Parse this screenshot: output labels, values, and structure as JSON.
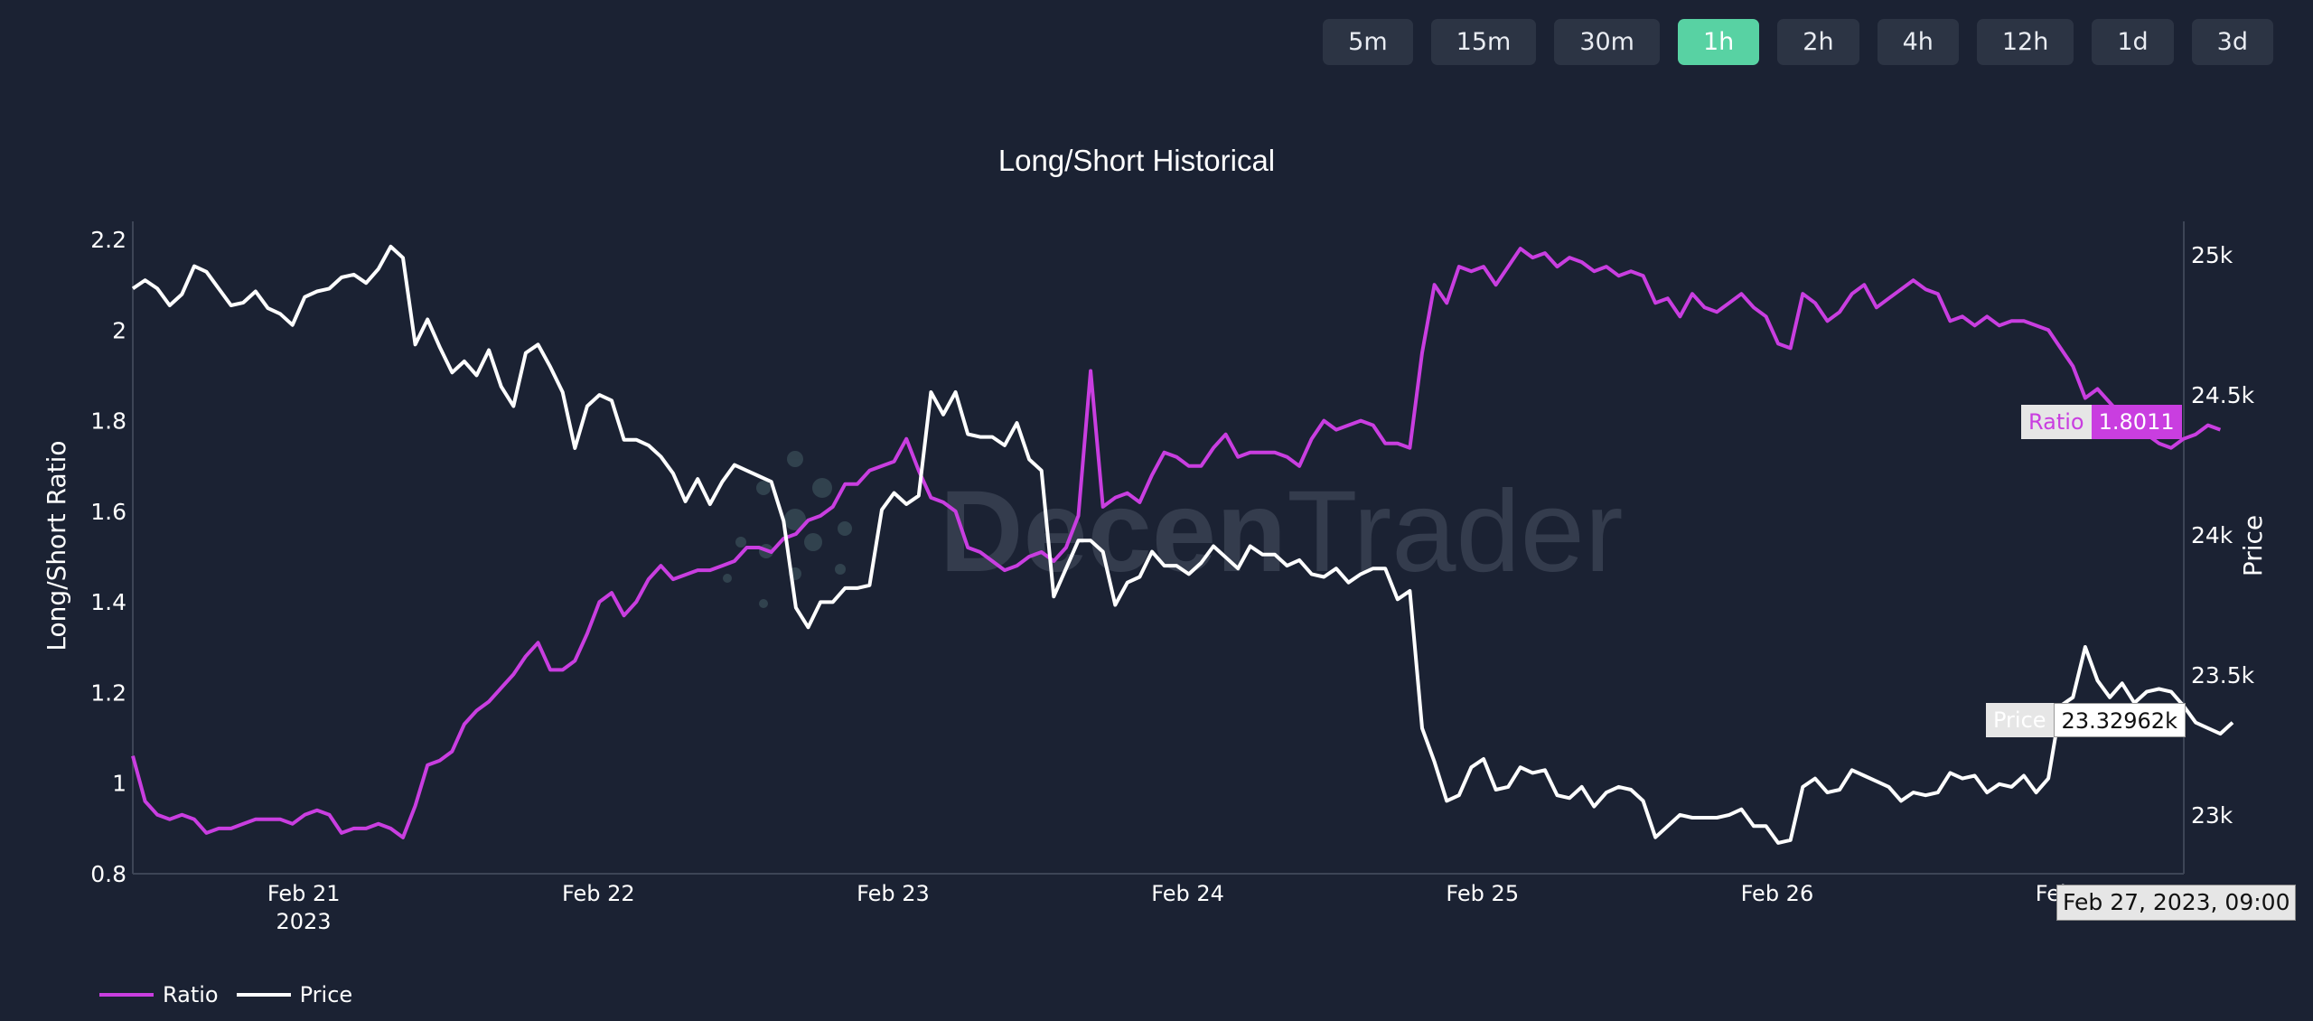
{
  "toolbar": {
    "timeframes": [
      "5m",
      "15m",
      "30m",
      "1h",
      "2h",
      "4h",
      "12h",
      "1d",
      "3d"
    ],
    "active": "1h"
  },
  "watermark": {
    "text_bold": "Decen",
    "text_light": "Trader"
  },
  "legend": {
    "ratio": "Ratio",
    "price": "Price"
  },
  "hover": {
    "ratio_label": "Ratio",
    "ratio_value": "1.8011",
    "price_label": "Price",
    "price_value": "23.32962k",
    "date": "Feb 27, 2023, 09:00"
  },
  "colors": {
    "background": "#1b2233",
    "ratio": "#c93ee0",
    "price": "#ffffff",
    "active_button": "#58d2a3"
  },
  "chart_data": {
    "type": "line",
    "title": "Long/Short Historical",
    "ylabel": "Long/Short Ratio",
    "y2label": "Price",
    "x_ticks": [
      "Feb 21",
      "Feb 22",
      "Feb 23",
      "Feb 24",
      "Feb 25",
      "Feb 26",
      "Feb 27"
    ],
    "x_tick_sublabel": "2023",
    "y_ticks": [
      "0.8",
      "1",
      "1.2",
      "1.4",
      "1.6",
      "1.8",
      "2",
      "2.2"
    ],
    "y2_ticks": [
      "23k",
      "23.5k",
      "24k",
      "24.5k",
      "25k"
    ],
    "ylim": [
      0.8,
      2.24
    ],
    "y2lim": [
      22790,
      25120
    ],
    "xlim_days": [
      20.42,
      27.38
    ],
    "series": [
      {
        "name": "Ratio",
        "color": "#c93ee0",
        "x_start_day": 20.42,
        "x_step_days": 0.04167,
        "values": [
          1.06,
          0.96,
          0.93,
          0.92,
          0.93,
          0.92,
          0.89,
          0.9,
          0.9,
          0.91,
          0.92,
          0.92,
          0.92,
          0.91,
          0.93,
          0.94,
          0.93,
          0.89,
          0.9,
          0.9,
          0.91,
          0.9,
          0.88,
          0.95,
          1.04,
          1.05,
          1.07,
          1.13,
          1.16,
          1.18,
          1.21,
          1.24,
          1.28,
          1.31,
          1.25,
          1.25,
          1.27,
          1.33,
          1.4,
          1.42,
          1.37,
          1.4,
          1.45,
          1.48,
          1.45,
          1.46,
          1.47,
          1.47,
          1.48,
          1.49,
          1.52,
          1.52,
          1.51,
          1.54,
          1.55,
          1.58,
          1.59,
          1.61,
          1.66,
          1.66,
          1.69,
          1.7,
          1.71,
          1.76,
          1.69,
          1.63,
          1.62,
          1.6,
          1.52,
          1.51,
          1.49,
          1.47,
          1.48,
          1.5,
          1.51,
          1.49,
          1.52,
          1.59,
          1.91,
          1.61,
          1.63,
          1.64,
          1.62,
          1.68,
          1.73,
          1.72,
          1.7,
          1.7,
          1.74,
          1.77,
          1.72,
          1.73,
          1.73,
          1.73,
          1.72,
          1.7,
          1.76,
          1.8,
          1.78,
          1.79,
          1.8,
          1.79,
          1.75,
          1.75,
          1.74,
          1.95,
          2.1,
          2.06,
          2.14,
          2.13,
          2.14,
          2.1,
          2.14,
          2.18,
          2.16,
          2.17,
          2.14,
          2.16,
          2.15,
          2.13,
          2.14,
          2.12,
          2.13,
          2.12,
          2.06,
          2.07,
          2.03,
          2.08,
          2.05,
          2.04,
          2.06,
          2.08,
          2.05,
          2.03,
          1.97,
          1.96,
          2.08,
          2.06,
          2.02,
          2.04,
          2.08,
          2.1,
          2.05,
          2.07,
          2.09,
          2.11,
          2.09,
          2.08,
          2.02,
          2.03,
          2.01,
          2.03,
          2.01,
          2.02,
          2.02,
          2.01,
          2.0,
          1.96,
          1.92,
          1.85,
          1.87,
          1.84,
          1.81,
          1.8,
          1.77,
          1.75,
          1.74,
          1.76,
          1.77,
          1.79,
          1.78
        ]
      },
      {
        "name": "Price",
        "color": "#ffffff",
        "x_start_day": 20.42,
        "x_step_days": 0.04167,
        "values": [
          24880,
          24910,
          24880,
          24820,
          24860,
          24960,
          24940,
          24880,
          24820,
          24830,
          24870,
          24810,
          24790,
          24750,
          24850,
          24870,
          24880,
          24920,
          24930,
          24900,
          24950,
          25030,
          24990,
          24680,
          24770,
          24670,
          24580,
          24620,
          24570,
          24660,
          24530,
          24460,
          24650,
          24680,
          24600,
          24510,
          24310,
          24460,
          24500,
          24480,
          24340,
          24340,
          24320,
          24280,
          24220,
          24120,
          24200,
          24110,
          24190,
          24250,
          24230,
          24210,
          24190,
          24050,
          23740,
          23670,
          23760,
          23760,
          23810,
          23810,
          23820,
          24090,
          24150,
          24110,
          24140,
          24510,
          24430,
          24510,
          24360,
          24350,
          24350,
          24320,
          24400,
          24270,
          24230,
          23780,
          23880,
          23980,
          23980,
          23940,
          23750,
          23830,
          23850,
          23940,
          23890,
          23890,
          23860,
          23900,
          23960,
          23920,
          23880,
          23960,
          23930,
          23930,
          23890,
          23910,
          23860,
          23850,
          23880,
          23830,
          23860,
          23880,
          23880,
          23770,
          23800,
          23310,
          23190,
          23050,
          23070,
          23170,
          23200,
          23090,
          23100,
          23170,
          23150,
          23160,
          23070,
          23060,
          23100,
          23030,
          23080,
          23100,
          23090,
          23050,
          22920,
          22960,
          23000,
          22990,
          22990,
          22990,
          23000,
          23020,
          22960,
          22960,
          22900,
          22910,
          23100,
          23130,
          23080,
          23090,
          23160,
          23140,
          23120,
          23100,
          23050,
          23080,
          23070,
          23080,
          23150,
          23130,
          23140,
          23080,
          23110,
          23100,
          23140,
          23080,
          23130,
          23390,
          23420,
          23600,
          23480,
          23420,
          23470,
          23400,
          23440,
          23450,
          23440,
          23390,
          23330,
          23310,
          23290,
          23330
        ]
      }
    ]
  }
}
